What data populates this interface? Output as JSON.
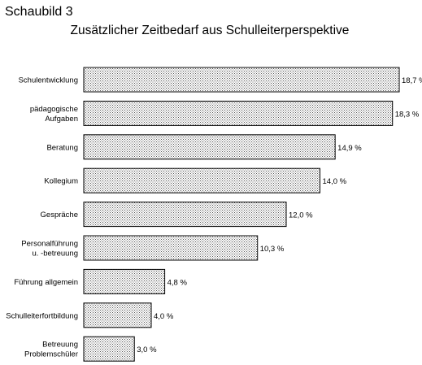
{
  "figure_label": "Schaubild 3",
  "chart_data": {
    "type": "bar",
    "orientation": "horizontal",
    "title": "Zusätzlicher Zeitbedarf aus Schulleiterperspektive",
    "categories": [
      [
        "Schulentwicklung"
      ],
      [
        "pädagogische",
        "Aufgaben"
      ],
      [
        "Beratung"
      ],
      [
        "Kollegium"
      ],
      [
        "Gespräche"
      ],
      [
        "Personalführung",
        "u. -betreuung"
      ],
      [
        "Führung allgemein"
      ],
      [
        "Schulleiterfortbildung"
      ],
      [
        "Betreuung",
        "Problemschüler"
      ]
    ],
    "values": [
      18.7,
      18.3,
      14.9,
      14.0,
      12.0,
      10.3,
      4.8,
      4.0,
      3.0
    ],
    "value_labels": [
      "18,7 %",
      "18,3 %",
      "14,9 %",
      "14,0 %",
      "12,0 %",
      "10,3 %",
      "4,8 %",
      "4,0 %",
      "3,0 %"
    ],
    "xlabel": "",
    "ylabel": "",
    "grid": false,
    "legend": "none",
    "bar_fill": "stippled",
    "colors": {
      "bar_stroke": "#000000",
      "bar_fill": "#ffffff",
      "stipple": "#555555"
    }
  }
}
